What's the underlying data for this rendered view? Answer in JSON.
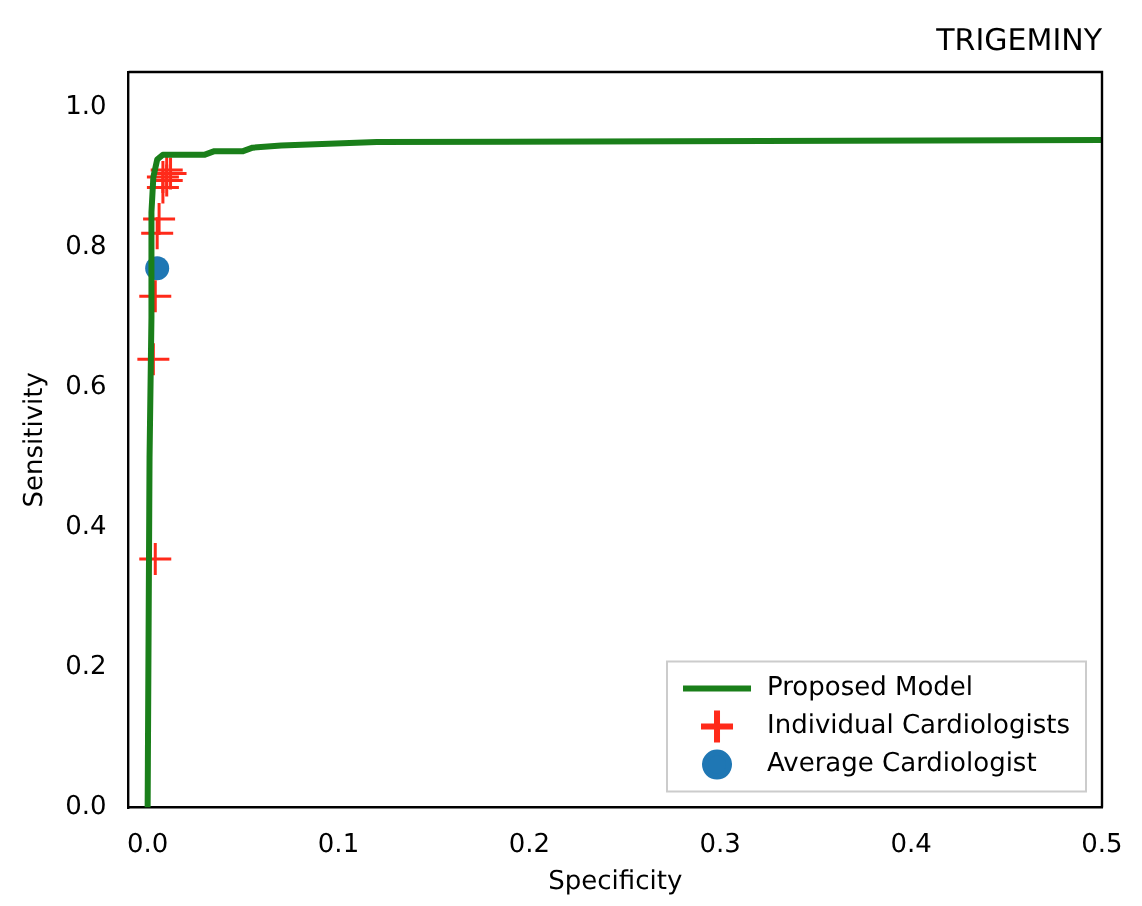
{
  "chart_data": {
    "type": "line",
    "title": "TRIGEMINY",
    "xlabel": "Specificity",
    "ylabel": "Sensitivity",
    "xlim": [
      -0.01,
      0.5
    ],
    "ylim": [
      0,
      1.05
    ],
    "xticks": [
      {
        "value": 0,
        "label": "0.0"
      },
      0.1,
      0.2,
      0.3,
      0.4,
      0.5
    ],
    "yticks": [
      {
        "value": 0,
        "label": "0.0"
      },
      0.2,
      0.4,
      0.6,
      0.8,
      {
        "value": 1,
        "label": "1.0"
      }
    ],
    "grid": false,
    "legend": "bottom right",
    "series": [
      {
        "name": "Proposed Model",
        "color": "#1a7f1a",
        "marker": "none",
        "x": [
          0,
          0.001,
          0.002,
          0.002,
          0.003,
          0.005,
          0.008,
          0.03,
          0.035,
          0.05,
          0.055,
          0.07,
          0.12,
          0.5
        ],
        "values": [
          0,
          0.5,
          0.7,
          0.85,
          0.9,
          0.925,
          0.932,
          0.932,
          0.937,
          0.937,
          0.942,
          0.945,
          0.95,
          0.953
        ]
      },
      {
        "name": "Individual Cardiologists",
        "type": "scatter",
        "color": "#ff2a1a",
        "marker": "cross",
        "x": [
          0.01,
          0.012,
          0.008,
          0.01,
          0.008,
          0.006,
          0.005,
          0.004,
          0.003,
          0.004
        ],
        "values": [
          0.91,
          0.905,
          0.9,
          0.895,
          0.885,
          0.84,
          0.82,
          0.73,
          0.64,
          0.355
        ]
      },
      {
        "name": "Average Cardiologist",
        "type": "scatter",
        "color": "#1f77b4",
        "marker": "circle",
        "x": [
          0.005
        ],
        "values": [
          0.77
        ]
      }
    ]
  }
}
